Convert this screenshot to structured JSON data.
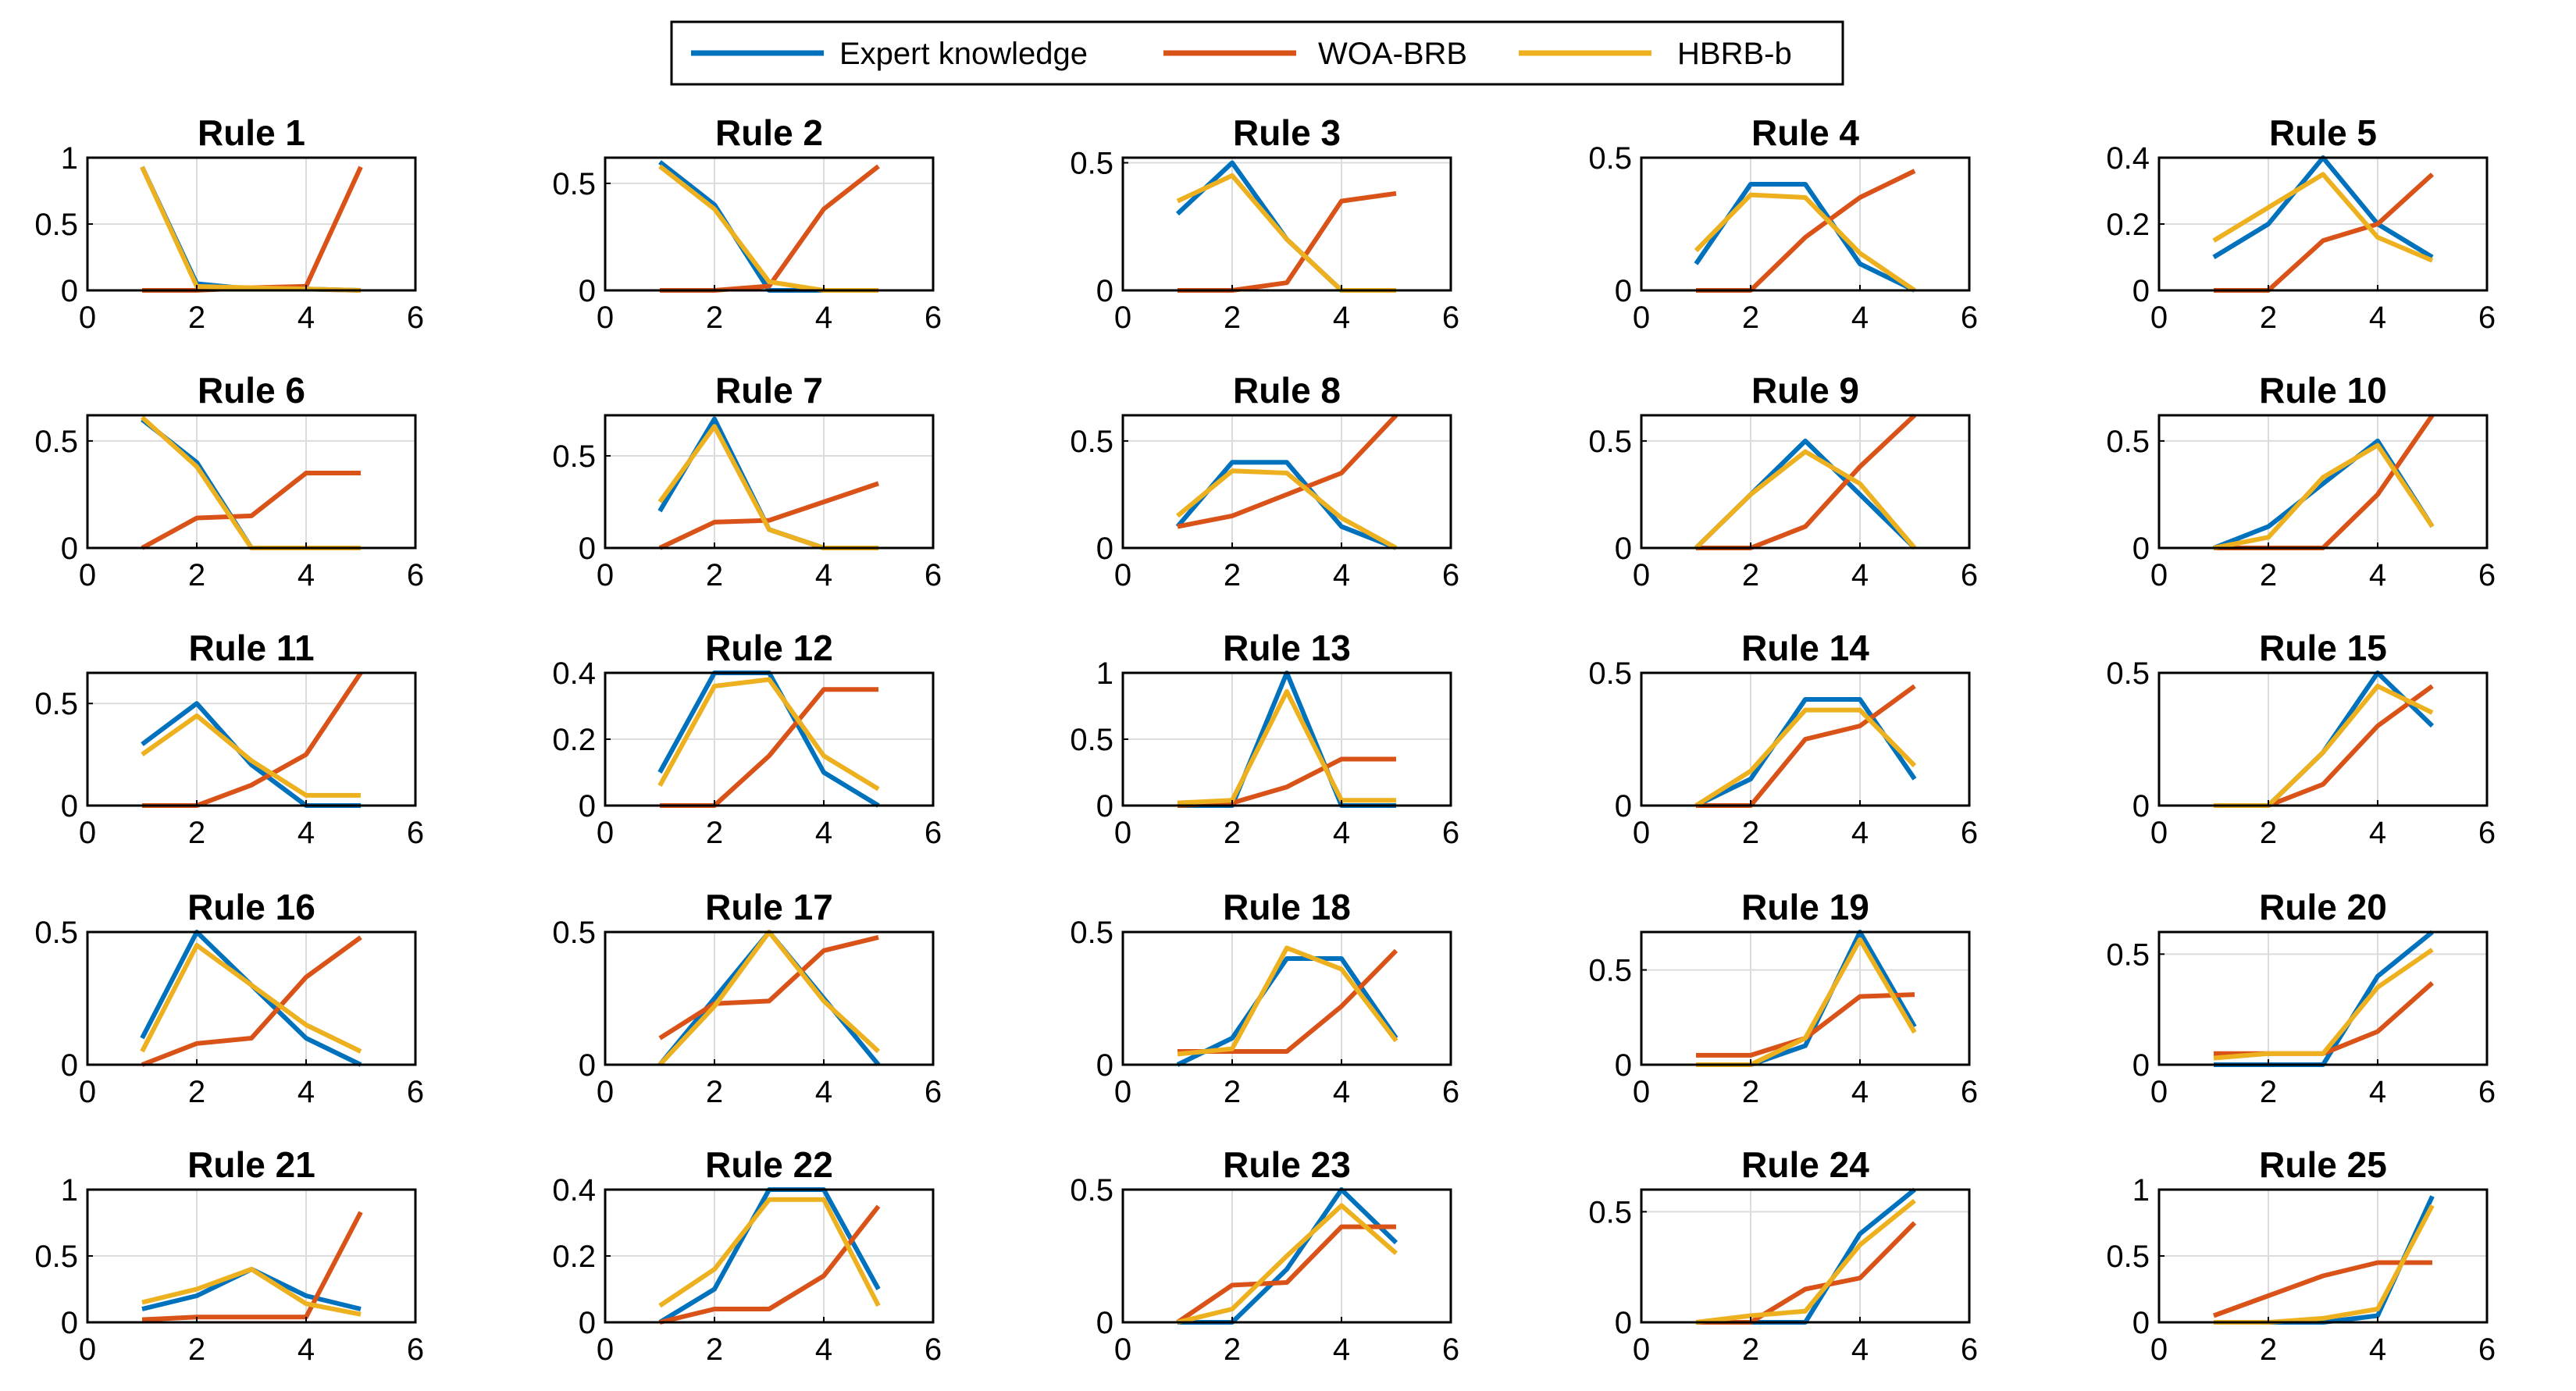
{
  "chart_data": {
    "type": "line",
    "layout": "grid 5x5",
    "x": [
      1,
      2,
      3,
      4,
      5
    ],
    "xlim": [
      0,
      6
    ],
    "xticks": [
      0,
      2,
      4,
      6
    ],
    "colors": {
      "expert": "#0072BD",
      "woa": "#D95319",
      "hbrb": "#EDB120"
    },
    "legend": {
      "position": "top-center",
      "entries": [
        "Expert knowledge",
        "WOA-BRB",
        "HBRB-b"
      ]
    },
    "panels": [
      {
        "title": "Rule 1",
        "ylim": [
          0,
          1
        ],
        "yticks": [
          0,
          0.5,
          1
        ],
        "expert": [
          0.93,
          0.05,
          0.01,
          0.01,
          0
        ],
        "woa": [
          0,
          0,
          0.02,
          0.03,
          0.93
        ],
        "hbrb": [
          0.93,
          0.03,
          0.02,
          0.01,
          0
        ]
      },
      {
        "title": "Rule 2",
        "ylim": [
          0,
          0.62
        ],
        "yticks": [
          0,
          0.5
        ],
        "expert": [
          0.6,
          0.4,
          0,
          0,
          0
        ],
        "woa": [
          0,
          0,
          0.02,
          0.38,
          0.58
        ],
        "hbrb": [
          0.58,
          0.38,
          0.04,
          0,
          0
        ]
      },
      {
        "title": "Rule 3",
        "ylim": [
          0,
          0.52
        ],
        "yticks": [
          0,
          0.5
        ],
        "expert": [
          0.3,
          0.5,
          0.2,
          0,
          0
        ],
        "woa": [
          0,
          0,
          0.03,
          0.35,
          0.38
        ],
        "hbrb": [
          0.35,
          0.45,
          0.2,
          0,
          0
        ]
      },
      {
        "title": "Rule 4",
        "ylim": [
          0,
          0.5
        ],
        "yticks": [
          0,
          0.5
        ],
        "expert": [
          0.1,
          0.4,
          0.4,
          0.1,
          0
        ],
        "woa": [
          0,
          0,
          0.2,
          0.35,
          0.45
        ],
        "hbrb": [
          0.15,
          0.36,
          0.35,
          0.14,
          0
        ]
      },
      {
        "title": "Rule 5",
        "ylim": [
          0,
          0.4
        ],
        "yticks": [
          0,
          0.2,
          0.4
        ],
        "expert": [
          0.1,
          0.2,
          0.4,
          0.2,
          0.1
        ],
        "woa": [
          0,
          0,
          0.15,
          0.2,
          0.35
        ],
        "hbrb": [
          0.15,
          0.25,
          0.35,
          0.16,
          0.09
        ]
      },
      {
        "title": "Rule 6",
        "ylim": [
          0,
          0.62
        ],
        "yticks": [
          0,
          0.5
        ],
        "expert": [
          0.6,
          0.4,
          0,
          0,
          0
        ],
        "woa": [
          0,
          0.14,
          0.15,
          0.35,
          0.35
        ],
        "hbrb": [
          0.61,
          0.38,
          0,
          0,
          0
        ]
      },
      {
        "title": "Rule 7",
        "ylim": [
          0,
          0.72
        ],
        "yticks": [
          0,
          0.5
        ],
        "expert": [
          0.2,
          0.7,
          0.1,
          0,
          0
        ],
        "woa": [
          0,
          0.14,
          0.15,
          0.25,
          0.35
        ],
        "hbrb": [
          0.25,
          0.66,
          0.1,
          0,
          0
        ]
      },
      {
        "title": "Rule 8",
        "ylim": [
          0,
          0.62
        ],
        "yticks": [
          0,
          0.5
        ],
        "expert": [
          0.1,
          0.4,
          0.4,
          0.1,
          0
        ],
        "woa": [
          0.1,
          0.15,
          0.25,
          0.35,
          0.62
        ],
        "hbrb": [
          0.15,
          0.36,
          0.35,
          0.14,
          0
        ]
      },
      {
        "title": "Rule 9",
        "ylim": [
          0,
          0.62
        ],
        "yticks": [
          0,
          0.5
        ],
        "expert": [
          0,
          0.25,
          0.5,
          0.25,
          0
        ],
        "woa": [
          0,
          0,
          0.1,
          0.38,
          0.62
        ],
        "hbrb": [
          0,
          0.25,
          0.45,
          0.3,
          0
        ]
      },
      {
        "title": "Rule 10",
        "ylim": [
          0,
          0.62
        ],
        "yticks": [
          0,
          0.5
        ],
        "expert": [
          0,
          0.1,
          0.3,
          0.5,
          0.1
        ],
        "woa": [
          0,
          0,
          0,
          0.25,
          0.62
        ],
        "hbrb": [
          0,
          0.05,
          0.33,
          0.48,
          0.1
        ]
      },
      {
        "title": "Rule 11",
        "ylim": [
          0,
          0.65
        ],
        "yticks": [
          0,
          0.5
        ],
        "expert": [
          0.3,
          0.5,
          0.2,
          0,
          0
        ],
        "woa": [
          0,
          0,
          0.1,
          0.25,
          0.65
        ],
        "hbrb": [
          0.25,
          0.44,
          0.22,
          0.05,
          0.05
        ]
      },
      {
        "title": "Rule 12",
        "ylim": [
          0,
          0.4
        ],
        "yticks": [
          0,
          0.2,
          0.4
        ],
        "expert": [
          0.1,
          0.4,
          0.4,
          0.1,
          0
        ],
        "woa": [
          0,
          0,
          0.15,
          0.35,
          0.35
        ],
        "hbrb": [
          0.06,
          0.36,
          0.38,
          0.15,
          0.05
        ]
      },
      {
        "title": "Rule 13",
        "ylim": [
          0,
          1
        ],
        "yticks": [
          0,
          0.5,
          1
        ],
        "expert": [
          0,
          0,
          1,
          0,
          0
        ],
        "woa": [
          0,
          0.02,
          0.14,
          0.35,
          0.35
        ],
        "hbrb": [
          0.02,
          0.04,
          0.86,
          0.04,
          0.04
        ]
      },
      {
        "title": "Rule 14",
        "ylim": [
          0,
          0.5
        ],
        "yticks": [
          0,
          0.5
        ],
        "expert": [
          0,
          0.1,
          0.4,
          0.4,
          0.1
        ],
        "woa": [
          0,
          0,
          0.25,
          0.3,
          0.45
        ],
        "hbrb": [
          0,
          0.13,
          0.36,
          0.36,
          0.15
        ]
      },
      {
        "title": "Rule 15",
        "ylim": [
          0,
          0.5
        ],
        "yticks": [
          0,
          0.5
        ],
        "expert": [
          0,
          0,
          0.2,
          0.5,
          0.3
        ],
        "woa": [
          0,
          0,
          0.08,
          0.3,
          0.45
        ],
        "hbrb": [
          0,
          0,
          0.2,
          0.45,
          0.35
        ]
      },
      {
        "title": "Rule 16",
        "ylim": [
          0,
          0.5
        ],
        "yticks": [
          0,
          0.5
        ],
        "expert": [
          0.1,
          0.5,
          0.3,
          0.1,
          0
        ],
        "woa": [
          0,
          0.08,
          0.1,
          0.33,
          0.48
        ],
        "hbrb": [
          0.05,
          0.45,
          0.3,
          0.15,
          0.05
        ]
      },
      {
        "title": "Rule 17",
        "ylim": [
          0,
          0.5
        ],
        "yticks": [
          0,
          0.5
        ],
        "expert": [
          0,
          0.25,
          0.5,
          0.25,
          0
        ],
        "woa": [
          0.1,
          0.23,
          0.24,
          0.43,
          0.48
        ],
        "hbrb": [
          0,
          0.22,
          0.5,
          0.24,
          0.05
        ]
      },
      {
        "title": "Rule 18",
        "ylim": [
          0,
          0.5
        ],
        "yticks": [
          0,
          0.5
        ],
        "expert": [
          0,
          0.1,
          0.4,
          0.4,
          0.1
        ],
        "woa": [
          0.05,
          0.05,
          0.05,
          0.22,
          0.43
        ],
        "hbrb": [
          0.04,
          0.06,
          0.44,
          0.36,
          0.09
        ]
      },
      {
        "title": "Rule 19",
        "ylim": [
          0,
          0.7
        ],
        "yticks": [
          0,
          0.5
        ],
        "expert": [
          0,
          0,
          0.1,
          0.7,
          0.2
        ],
        "woa": [
          0.05,
          0.05,
          0.14,
          0.36,
          0.37
        ],
        "hbrb": [
          0,
          0,
          0.14,
          0.66,
          0.17
        ]
      },
      {
        "title": "Rule 20",
        "ylim": [
          0,
          0.6
        ],
        "yticks": [
          0,
          0.5
        ],
        "expert": [
          0,
          0,
          0,
          0.4,
          0.6
        ],
        "woa": [
          0.05,
          0.05,
          0.05,
          0.15,
          0.37
        ],
        "hbrb": [
          0.03,
          0.05,
          0.05,
          0.35,
          0.52
        ]
      },
      {
        "title": "Rule 21",
        "ylim": [
          0,
          1
        ],
        "yticks": [
          0,
          0.5,
          1
        ],
        "expert": [
          0.1,
          0.2,
          0.4,
          0.2,
          0.1
        ],
        "woa": [
          0.02,
          0.04,
          0.04,
          0.04,
          0.83
        ],
        "hbrb": [
          0.15,
          0.25,
          0.4,
          0.14,
          0.06
        ]
      },
      {
        "title": "Rule 22",
        "ylim": [
          0,
          0.4
        ],
        "yticks": [
          0,
          0.2,
          0.4
        ],
        "expert": [
          0,
          0.1,
          0.4,
          0.4,
          0.1
        ],
        "woa": [
          0,
          0.04,
          0.04,
          0.14,
          0.35
        ],
        "hbrb": [
          0.05,
          0.16,
          0.37,
          0.37,
          0.05
        ]
      },
      {
        "title": "Rule 23",
        "ylim": [
          0,
          0.5
        ],
        "yticks": [
          0,
          0.5
        ],
        "expert": [
          0,
          0,
          0.2,
          0.5,
          0.3
        ],
        "woa": [
          0,
          0.14,
          0.15,
          0.36,
          0.36
        ],
        "hbrb": [
          0,
          0.05,
          0.25,
          0.44,
          0.26
        ]
      },
      {
        "title": "Rule 24",
        "ylim": [
          0,
          0.6
        ],
        "yticks": [
          0,
          0.5
        ],
        "expert": [
          0,
          0,
          0,
          0.4,
          0.6
        ],
        "woa": [
          0,
          0,
          0.15,
          0.2,
          0.45
        ],
        "hbrb": [
          0,
          0.03,
          0.05,
          0.35,
          0.55
        ]
      },
      {
        "title": "Rule 25",
        "ylim": [
          0,
          1
        ],
        "yticks": [
          0,
          0.5,
          1
        ],
        "expert": [
          0,
          0,
          0,
          0.05,
          0.95
        ],
        "woa": [
          0.05,
          0.2,
          0.35,
          0.45,
          0.45
        ],
        "hbrb": [
          0,
          0,
          0.03,
          0.1,
          0.88
        ]
      }
    ]
  }
}
